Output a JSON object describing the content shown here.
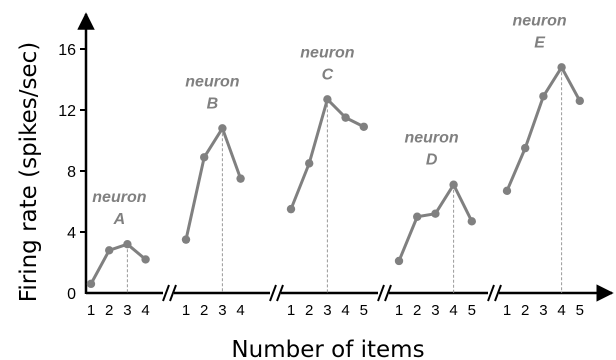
{
  "chart_data": {
    "type": "line",
    "ylabel": "Firing rate (spikes/sec)",
    "xlabel": "Number of items",
    "ylim": [
      0,
      18
    ],
    "yticks": [
      0,
      4,
      8,
      12,
      16
    ],
    "line_color": "#808080",
    "axis_color": "#000000",
    "dashed_marker_color": "#999999",
    "grid": false,
    "series": [
      {
        "label_line1": "neuron",
        "label_line2": "A",
        "x": [
          1,
          2,
          3,
          4
        ],
        "values": [
          0.6,
          2.8,
          3.2,
          2.2
        ],
        "marked_x": 3
      },
      {
        "label_line1": "neuron",
        "label_line2": "B",
        "x": [
          1,
          2,
          3,
          4
        ],
        "values": [
          3.5,
          8.9,
          10.8,
          7.5
        ],
        "marked_x": 3
      },
      {
        "label_line1": "neuron",
        "label_line2": "C",
        "x": [
          1,
          2,
          3,
          4,
          5
        ],
        "values": [
          5.5,
          8.5,
          12.7,
          11.5,
          10.9
        ],
        "marked_x": 3
      },
      {
        "label_line1": "neuron",
        "label_line2": "D",
        "x": [
          1,
          2,
          3,
          4,
          5
        ],
        "values": [
          2.1,
          5.0,
          5.2,
          7.1,
          4.7
        ],
        "marked_x": 4
      },
      {
        "label_line1": "neuron",
        "label_line2": "E",
        "x": [
          1,
          2,
          3,
          4,
          5
        ],
        "values": [
          6.7,
          9.5,
          12.9,
          14.8,
          12.6
        ],
        "marked_x": 4
      }
    ]
  }
}
